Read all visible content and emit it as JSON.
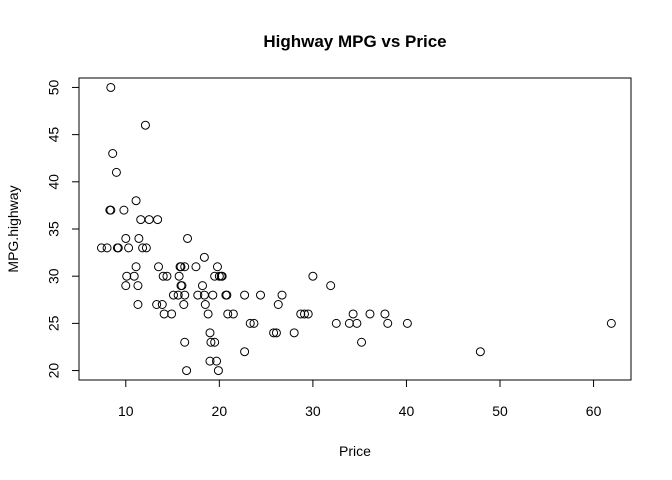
{
  "chart_data": {
    "type": "scatter",
    "title": "Highway MPG vs Price",
    "xlabel": "Price",
    "ylabel": "MPG.highway",
    "xlim": [
      5,
      64
    ],
    "ylim": [
      19,
      51
    ],
    "x_ticks": [
      10,
      20,
      30,
      40,
      50,
      60
    ],
    "y_ticks": [
      20,
      25,
      30,
      35,
      40,
      45,
      50
    ],
    "grid": false,
    "legend": "none",
    "marker": "open-circle",
    "color": "#000000",
    "points": [
      [
        7.4,
        33
      ],
      [
        8.0,
        33
      ],
      [
        8.3,
        37
      ],
      [
        8.4,
        50
      ],
      [
        8.4,
        37
      ],
      [
        8.6,
        43
      ],
      [
        9.0,
        41
      ],
      [
        9.1,
        33
      ],
      [
        9.2,
        33
      ],
      [
        9.8,
        37
      ],
      [
        10.0,
        34
      ],
      [
        10.0,
        29
      ],
      [
        10.1,
        30
      ],
      [
        10.3,
        33
      ],
      [
        10.9,
        30
      ],
      [
        11.1,
        31
      ],
      [
        11.1,
        38
      ],
      [
        11.3,
        29
      ],
      [
        11.3,
        27
      ],
      [
        11.4,
        34
      ],
      [
        11.6,
        36
      ],
      [
        11.8,
        33
      ],
      [
        12.1,
        46
      ],
      [
        12.2,
        33
      ],
      [
        12.5,
        36
      ],
      [
        13.3,
        27
      ],
      [
        13.4,
        36
      ],
      [
        13.5,
        31
      ],
      [
        13.9,
        27
      ],
      [
        14.0,
        30
      ],
      [
        14.1,
        26
      ],
      [
        14.4,
        30
      ],
      [
        14.9,
        26
      ],
      [
        15.1,
        28
      ],
      [
        15.6,
        28
      ],
      [
        15.7,
        30
      ],
      [
        15.8,
        31
      ],
      [
        15.9,
        31
      ],
      [
        15.9,
        29
      ],
      [
        16.0,
        29
      ],
      [
        16.2,
        27
      ],
      [
        16.3,
        31
      ],
      [
        16.3,
        28
      ],
      [
        16.3,
        23
      ],
      [
        16.5,
        20
      ],
      [
        16.6,
        34
      ],
      [
        17.5,
        31
      ],
      [
        17.7,
        28
      ],
      [
        18.2,
        29
      ],
      [
        18.4,
        32
      ],
      [
        18.4,
        28
      ],
      [
        18.5,
        27
      ],
      [
        18.8,
        26
      ],
      [
        19.0,
        24
      ],
      [
        19.0,
        21
      ],
      [
        19.1,
        23
      ],
      [
        19.3,
        28
      ],
      [
        19.5,
        30
      ],
      [
        19.5,
        23
      ],
      [
        19.7,
        21
      ],
      [
        19.8,
        31
      ],
      [
        19.9,
        20
      ],
      [
        20.0,
        30
      ],
      [
        20.2,
        30
      ],
      [
        20.3,
        30
      ],
      [
        20.7,
        28
      ],
      [
        20.8,
        28
      ],
      [
        20.9,
        26
      ],
      [
        21.5,
        26
      ],
      [
        22.7,
        28
      ],
      [
        22.7,
        22
      ],
      [
        23.3,
        25
      ],
      [
        23.7,
        25
      ],
      [
        24.4,
        28
      ],
      [
        25.8,
        24
      ],
      [
        26.1,
        24
      ],
      [
        26.3,
        27
      ],
      [
        26.7,
        28
      ],
      [
        28.0,
        24
      ],
      [
        28.7,
        26
      ],
      [
        29.1,
        26
      ],
      [
        29.5,
        26
      ],
      [
        30.0,
        30
      ],
      [
        31.9,
        29
      ],
      [
        32.5,
        25
      ],
      [
        33.9,
        25
      ],
      [
        34.3,
        26
      ],
      [
        34.7,
        25
      ],
      [
        35.2,
        23
      ],
      [
        36.1,
        26
      ],
      [
        37.7,
        26
      ],
      [
        38.0,
        25
      ],
      [
        40.1,
        25
      ],
      [
        47.9,
        22
      ],
      [
        61.9,
        25
      ]
    ]
  }
}
